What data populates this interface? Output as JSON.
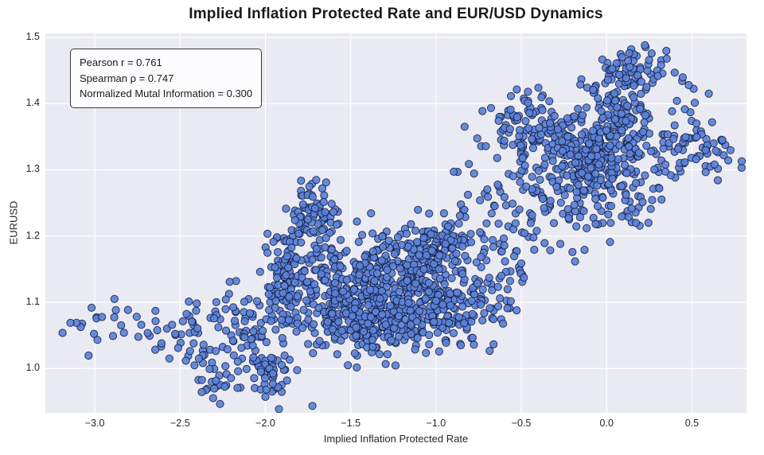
{
  "annotation": {
    "lines": [
      "Pearson r  = 0.761",
      "Spearman ρ = 0.747",
      "Normalized Mutal Information = 0.300"
    ]
  },
  "chart_data": {
    "type": "scatter",
    "title": "Implied Inflation Protected Rate and EUR/USD Dynamics",
    "xlabel": "Implied Inflation Protected Rate",
    "ylabel": "EURUSD",
    "xlim": [
      -3.29,
      0.82
    ],
    "ylim": [
      0.933,
      1.506
    ],
    "x_ticks": [
      -3.0,
      -2.5,
      -2.0,
      -1.5,
      -1.0,
      -0.5,
      0.0,
      0.5
    ],
    "x_tick_labels": [
      "−3.0",
      "−2.5",
      "−2.0",
      "−1.5",
      "−1.0",
      "−0.5",
      "0.0",
      "0.5"
    ],
    "y_ticks": [
      1.0,
      1.1,
      1.2,
      1.3,
      1.4,
      1.5
    ],
    "y_tick_labels": [
      "1.0",
      "1.1",
      "1.2",
      "1.3",
      "1.4",
      "1.5"
    ],
    "grid": true,
    "legend": false,
    "background": "#eaeaf2",
    "grid_color": "#ffffff",
    "stats": {
      "pearson_r": 0.761,
      "spearman_rho": 0.747,
      "normalized_mutual_information": 0.3
    },
    "marker": {
      "fill": "#5b82d8",
      "edge": "#10173a",
      "radius": 4.6,
      "fill_opacity": 0.92,
      "edge_opacity": 0.8,
      "edge_width": 1
    },
    "seed": 42,
    "clusters": [
      {
        "cx": -2.95,
        "cy": 1.072,
        "sx": 0.13,
        "sy": 0.016,
        "n": 22
      },
      {
        "cx": -2.62,
        "cy": 1.058,
        "sx": 0.1,
        "sy": 0.02,
        "n": 16
      },
      {
        "cx": -2.38,
        "cy": 1.045,
        "sx": 0.08,
        "sy": 0.028,
        "n": 28
      },
      {
        "cx": -2.33,
        "cy": 0.975,
        "sx": 0.06,
        "sy": 0.013,
        "n": 16
      },
      {
        "cx": -2.15,
        "cy": 1.02,
        "sx": 0.1,
        "sy": 0.03,
        "n": 32
      },
      {
        "cx": -1.96,
        "cy": 0.995,
        "sx": 0.09,
        "sy": 0.022,
        "n": 45
      },
      {
        "cx": -2.06,
        "cy": 1.065,
        "sx": 0.06,
        "sy": 0.02,
        "n": 22
      },
      {
        "cx": -2.3,
        "cy": 1.1,
        "sx": 0.09,
        "sy": 0.018,
        "n": 16
      },
      {
        "cx": -1.88,
        "cy": 1.148,
        "sx": 0.07,
        "sy": 0.028,
        "n": 85
      },
      {
        "cx": -1.73,
        "cy": 1.235,
        "sx": 0.07,
        "sy": 0.022,
        "n": 75
      },
      {
        "cx": -1.9,
        "cy": 1.085,
        "sx": 0.08,
        "sy": 0.025,
        "n": 45
      },
      {
        "cx": -1.65,
        "cy": 1.17,
        "sx": 0.06,
        "sy": 0.027,
        "n": 45
      },
      {
        "cx": -1.55,
        "cy": 1.1,
        "sx": 0.13,
        "sy": 0.035,
        "n": 170
      },
      {
        "cx": -1.45,
        "cy": 1.058,
        "sx": 0.15,
        "sy": 0.018,
        "n": 60
      },
      {
        "cx": -1.25,
        "cy": 1.09,
        "sx": 0.15,
        "sy": 0.035,
        "n": 210
      },
      {
        "cx": -1.05,
        "cy": 1.13,
        "sx": 0.12,
        "sy": 0.03,
        "n": 115
      },
      {
        "cx": -0.98,
        "cy": 1.185,
        "sx": 0.12,
        "sy": 0.022,
        "n": 110
      },
      {
        "cx": -1.35,
        "cy": 1.165,
        "sx": 0.1,
        "sy": 0.02,
        "n": 55
      },
      {
        "cx": -0.95,
        "cy": 1.07,
        "sx": 0.12,
        "sy": 0.02,
        "n": 50
      },
      {
        "cx": -0.75,
        "cy": 1.1,
        "sx": 0.12,
        "sy": 0.035,
        "n": 55
      },
      {
        "cx": -0.55,
        "cy": 1.17,
        "sx": 0.12,
        "sy": 0.04,
        "n": 40
      },
      {
        "cx": -0.75,
        "cy": 1.27,
        "sx": 0.1,
        "sy": 0.04,
        "n": 22
      },
      {
        "cx": -0.45,
        "cy": 1.28,
        "sx": 0.1,
        "sy": 0.035,
        "n": 45
      },
      {
        "cx": -0.48,
        "cy": 1.365,
        "sx": 0.09,
        "sy": 0.028,
        "n": 90
      },
      {
        "cx": -0.15,
        "cy": 1.33,
        "sx": 0.12,
        "sy": 0.035,
        "n": 155
      },
      {
        "cx": 0.05,
        "cy": 1.32,
        "sx": 0.12,
        "sy": 0.035,
        "n": 145
      },
      {
        "cx": 0.1,
        "cy": 1.4,
        "sx": 0.1,
        "sy": 0.025,
        "n": 80
      },
      {
        "cx": 0.15,
        "cy": 1.455,
        "sx": 0.1,
        "sy": 0.018,
        "n": 50
      },
      {
        "cx": 0.45,
        "cy": 1.33,
        "sx": 0.12,
        "sy": 0.02,
        "n": 55
      },
      {
        "cx": 0.62,
        "cy": 1.335,
        "sx": 0.07,
        "sy": 0.017,
        "n": 18
      },
      {
        "cx": 0.5,
        "cy": 1.41,
        "sx": 0.07,
        "sy": 0.02,
        "n": 8
      },
      {
        "cx": -0.2,
        "cy": 1.23,
        "sx": 0.15,
        "sy": 0.03,
        "n": 38
      },
      {
        "cx": 0.15,
        "cy": 1.26,
        "sx": 0.1,
        "sy": 0.02,
        "n": 14
      },
      {
        "cx": -1.38,
        "cy": 1.24,
        "sx": 0.01,
        "sy": 0.004,
        "n": 1
      }
    ]
  }
}
